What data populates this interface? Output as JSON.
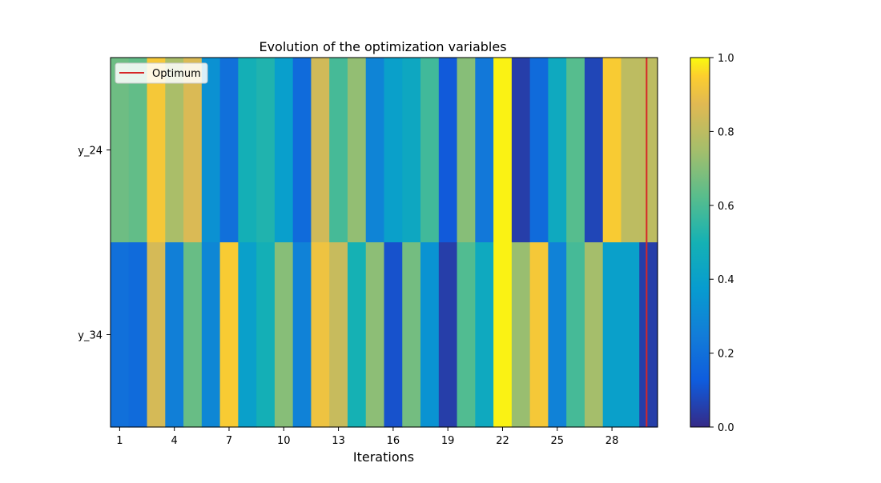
{
  "chart_data": {
    "type": "heatmap",
    "title": "Evolution of the optimization variables",
    "xlabel": "Iterations",
    "rows": [
      "y_24",
      "y_34"
    ],
    "x_tick_labels": [
      "1",
      "4",
      "7",
      "10",
      "13",
      "16",
      "19",
      "22",
      "25",
      "28"
    ],
    "iterations": [
      1,
      2,
      3,
      4,
      5,
      6,
      7,
      8,
      9,
      10,
      11,
      12,
      13,
      14,
      15,
      16,
      17,
      18,
      19,
      20,
      21,
      22,
      23,
      24,
      25,
      26,
      27,
      28,
      29,
      30
    ],
    "values": [
      [
        0.66,
        0.64,
        0.93,
        0.76,
        0.86,
        0.33,
        0.2,
        0.49,
        0.52,
        0.39,
        0.18,
        0.84,
        0.59,
        0.72,
        0.28,
        0.4,
        0.44,
        0.58,
        0.12,
        0.7,
        0.23,
        0.99,
        0.05,
        0.18,
        0.45,
        0.62,
        0.07,
        0.94,
        0.8,
        0.8
      ],
      [
        0.2,
        0.18,
        0.85,
        0.26,
        0.65,
        0.29,
        0.94,
        0.4,
        0.49,
        0.7,
        0.27,
        0.91,
        0.82,
        0.5,
        0.71,
        0.1,
        0.67,
        0.34,
        0.05,
        0.61,
        0.45,
        0.99,
        0.73,
        0.93,
        0.27,
        0.59,
        0.75,
        0.4,
        0.4,
        0.05
      ]
    ],
    "vmin": 0.0,
    "vmax": 1.0,
    "colorbar_ticks": [
      "0.0",
      "0.2",
      "0.4",
      "0.6",
      "0.8",
      "1.0"
    ],
    "colormap": "parula",
    "optimum_iteration": 30,
    "optimum_color": "#d62728",
    "legend": {
      "label": "Optimum",
      "placement": "upper-left"
    }
  }
}
